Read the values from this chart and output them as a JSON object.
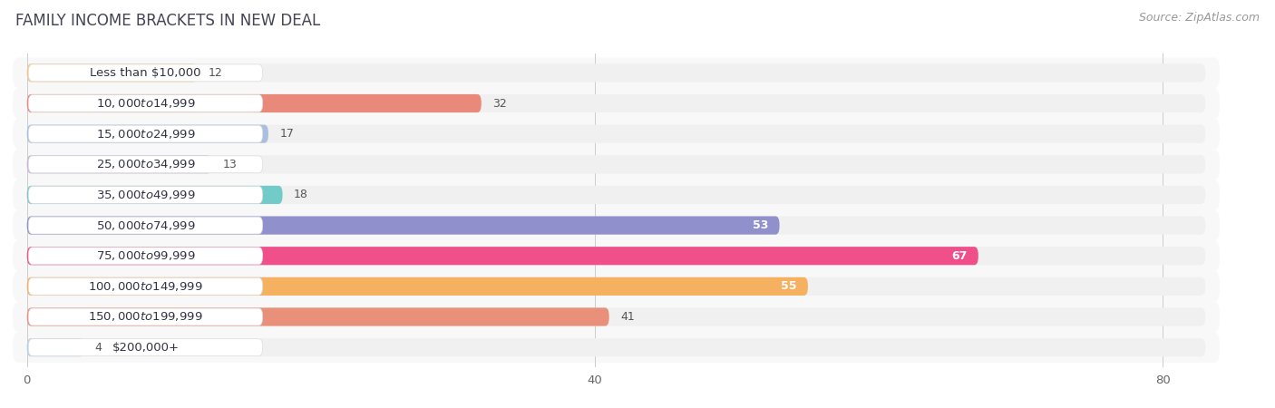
{
  "title": "FAMILY INCOME BRACKETS IN NEW DEAL",
  "source": "Source: ZipAtlas.com",
  "categories": [
    "Less than $10,000",
    "$10,000 to $14,999",
    "$15,000 to $24,999",
    "$25,000 to $34,999",
    "$35,000 to $49,999",
    "$50,000 to $74,999",
    "$75,000 to $99,999",
    "$100,000 to $149,999",
    "$150,000 to $199,999",
    "$200,000+"
  ],
  "values": [
    12,
    32,
    17,
    13,
    18,
    53,
    67,
    55,
    41,
    4
  ],
  "bar_colors": [
    "#f5c48a",
    "#e8897a",
    "#a8bfe0",
    "#c8b5d8",
    "#72cbc8",
    "#9090cc",
    "#f0508a",
    "#f5b060",
    "#e8907a",
    "#b8cce8"
  ],
  "xlim": [
    -1,
    87
  ],
  "xticks": [
    0,
    40,
    80
  ],
  "background_color": "#ffffff",
  "bar_background_color": "#f0f0f0",
  "row_bg_color": "#f8f8f8",
  "title_fontsize": 12,
  "source_fontsize": 9,
  "label_fontsize": 9.5,
  "value_fontsize": 9
}
